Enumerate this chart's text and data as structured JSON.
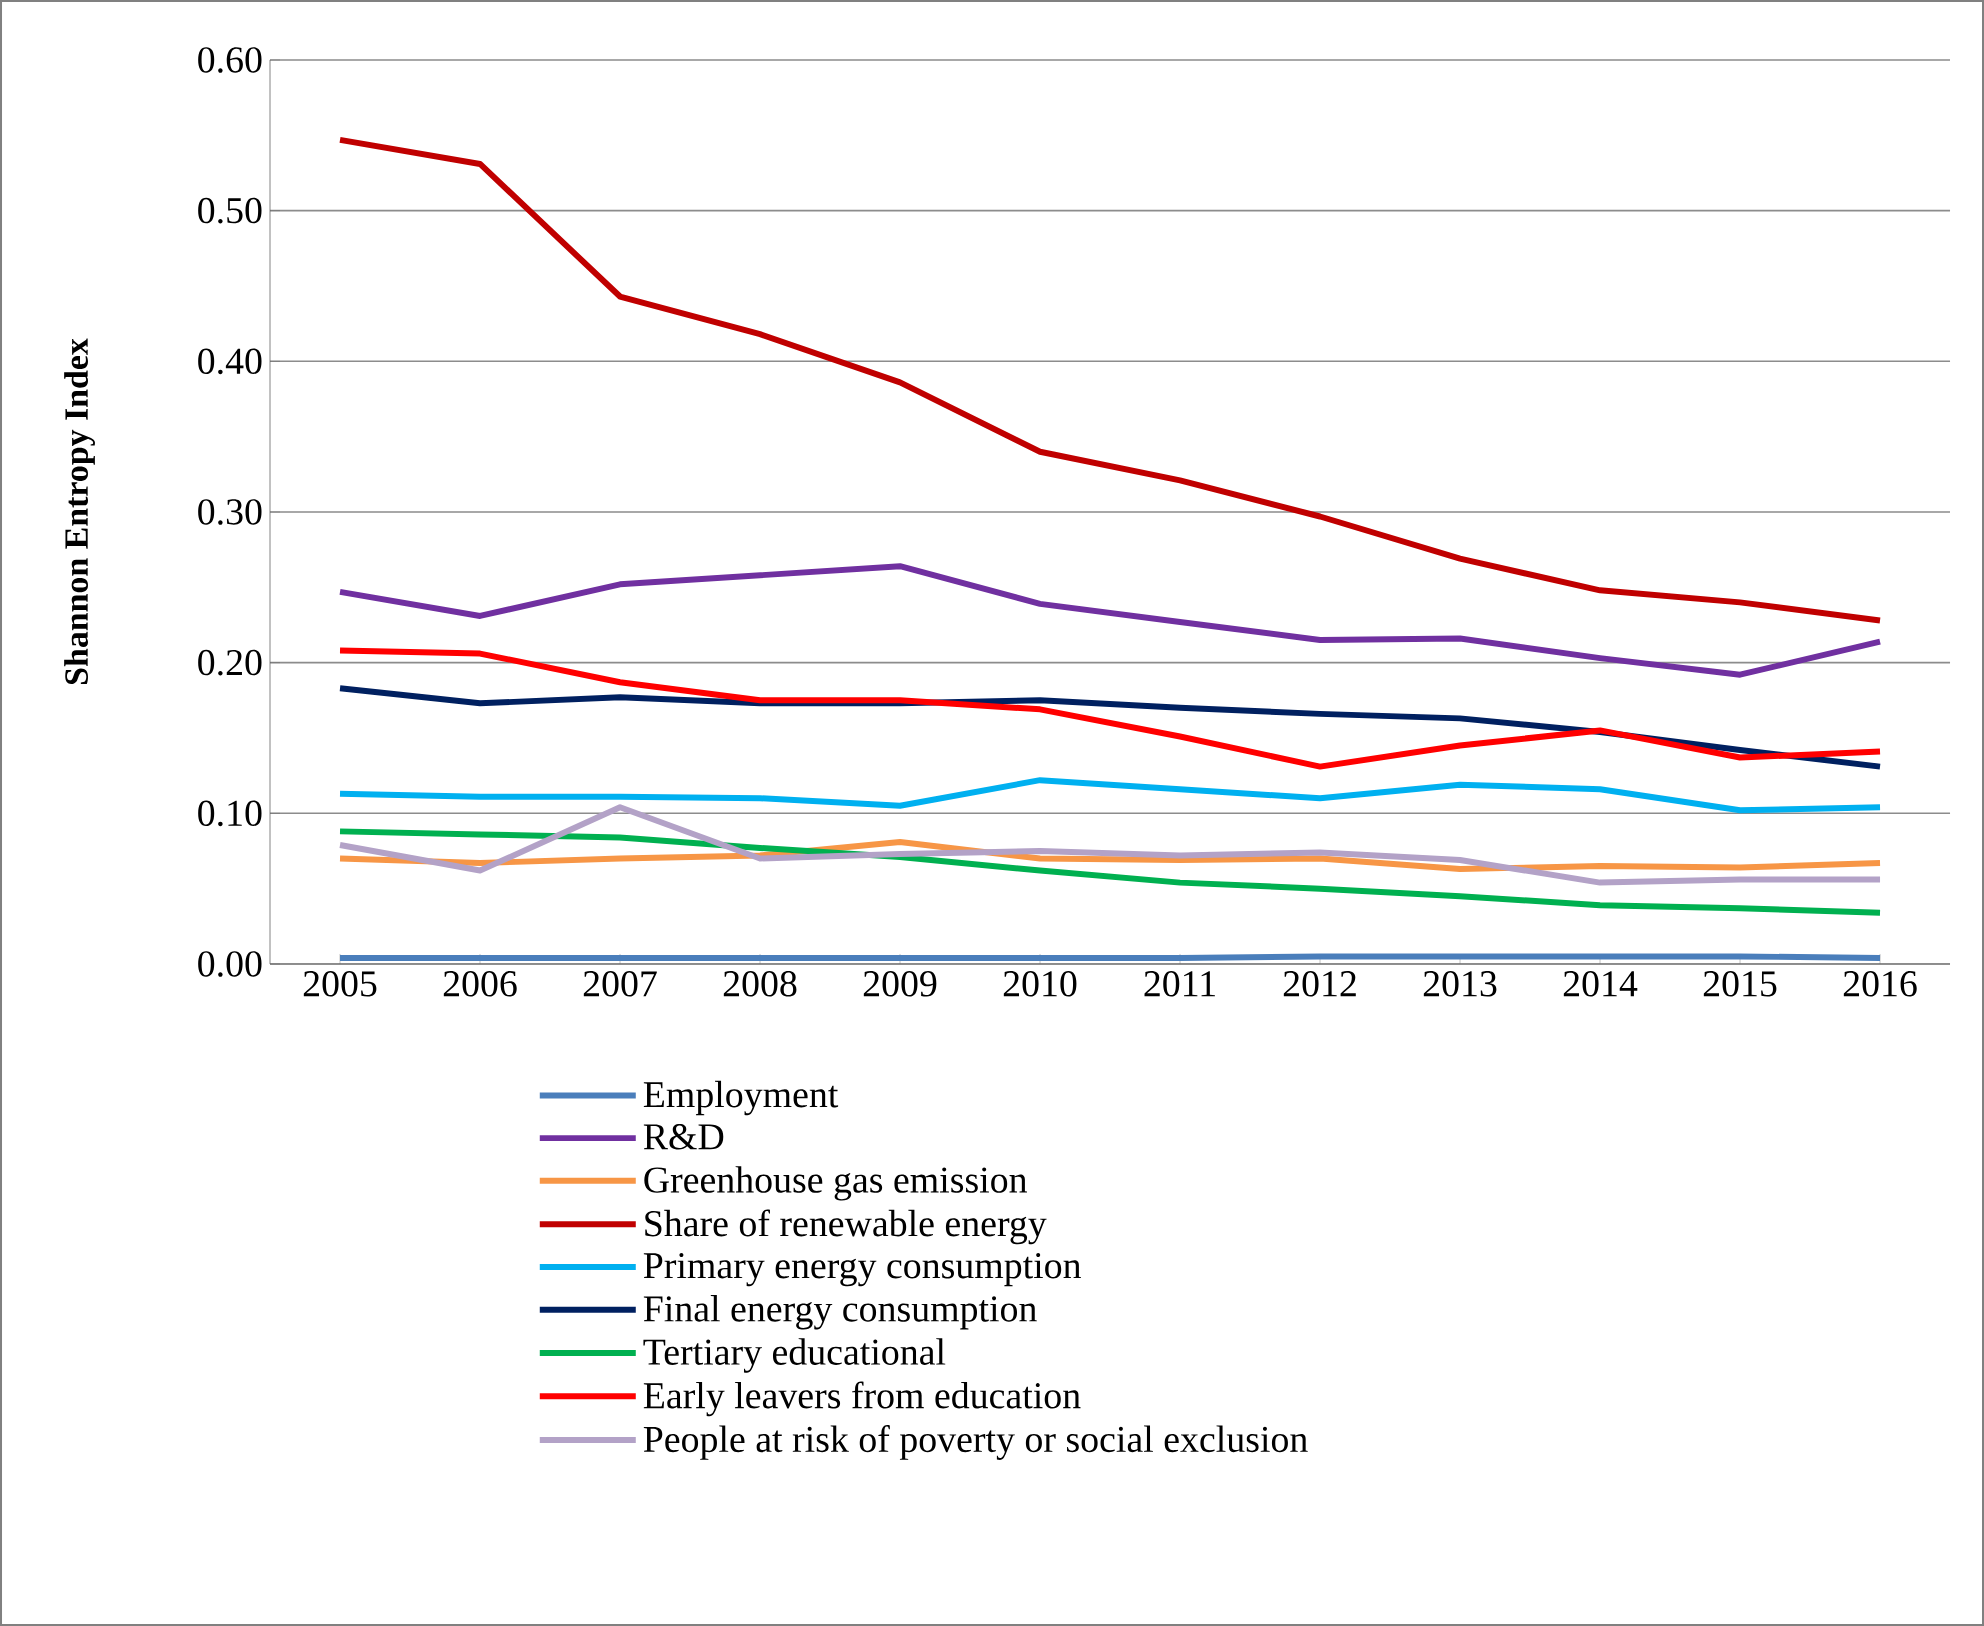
{
  "chart_data": {
    "type": "line",
    "ylabel": "Shannon Entropy Index",
    "categories": [
      "2005",
      "2006",
      "2007",
      "2008",
      "2009",
      "2010",
      "2011",
      "2012",
      "2013",
      "2014",
      "2015",
      "2016"
    ],
    "ylim": [
      0,
      0.6
    ],
    "yticks": [
      {
        "value": 0,
        "label": "0.00"
      },
      {
        "value": 0.1,
        "label": "0.10"
      },
      {
        "value": 0.2,
        "label": "0.20"
      },
      {
        "value": 0.3,
        "label": "0.30"
      },
      {
        "value": 0.4,
        "label": "0.40"
      },
      {
        "value": 0.5,
        "label": "0.50"
      },
      {
        "value": 0.6,
        "label": "0.60"
      }
    ],
    "grid": "y",
    "legend": "bottom",
    "series": [
      {
        "name": "Employment",
        "color": "#4a7ebb",
        "values": [
          0.004,
          0.004,
          0.004,
          0.004,
          0.004,
          0.004,
          0.004,
          0.005,
          0.005,
          0.005,
          0.005,
          0.004
        ]
      },
      {
        "name": "R&D",
        "color": "#7030a0",
        "values": [
          0.247,
          0.231,
          0.252,
          0.258,
          0.264,
          0.239,
          0.227,
          0.215,
          0.216,
          0.203,
          0.192,
          0.214
        ]
      },
      {
        "name": "Greenhouse gas emission",
        "color": "#f79646",
        "values": [
          0.07,
          0.067,
          0.07,
          0.072,
          0.081,
          0.07,
          0.069,
          0.07,
          0.063,
          0.065,
          0.064,
          0.067
        ]
      },
      {
        "name": "Share of renewable energy",
        "color": "#c00000",
        "values": [
          0.547,
          0.531,
          0.443,
          0.418,
          0.386,
          0.34,
          0.321,
          0.297,
          0.269,
          0.248,
          0.24,
          0.228
        ]
      },
      {
        "name": "Primary energy consumption",
        "color": "#00b0f0",
        "values": [
          0.113,
          0.111,
          0.111,
          0.11,
          0.105,
          0.122,
          0.116,
          0.11,
          0.119,
          0.116,
          0.102,
          0.104
        ]
      },
      {
        "name": "Final energy consumption",
        "color": "#002060",
        "values": [
          0.183,
          0.173,
          0.177,
          0.173,
          0.173,
          0.175,
          0.17,
          0.166,
          0.163,
          0.154,
          0.142,
          0.131
        ]
      },
      {
        "name": "Tertiary educational",
        "color": "#00b050",
        "values": [
          0.088,
          0.086,
          0.084,
          0.077,
          0.071,
          0.062,
          0.054,
          0.05,
          0.045,
          0.039,
          0.037,
          0.034
        ]
      },
      {
        "name": "Early leavers from education",
        "color": "#ff0000",
        "values": [
          0.208,
          0.206,
          0.187,
          0.175,
          0.175,
          0.169,
          0.151,
          0.131,
          0.145,
          0.155,
          0.137,
          0.141
        ]
      },
      {
        "name": "People at risk of poverty or social exclusion",
        "color": "#b3a2c7",
        "values": [
          0.079,
          0.062,
          0.104,
          0.07,
          0.073,
          0.075,
          0.072,
          0.074,
          0.069,
          0.054,
          0.056,
          0.056
        ]
      }
    ]
  }
}
